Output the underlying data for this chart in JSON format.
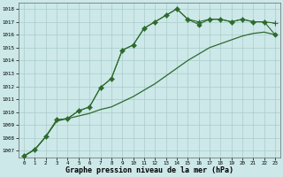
{
  "x": [
    0,
    1,
    2,
    3,
    4,
    5,
    6,
    7,
    8,
    9,
    10,
    11,
    12,
    13,
    14,
    15,
    16,
    17,
    18,
    19,
    20,
    21,
    22,
    23
  ],
  "line1": [
    1006.6,
    1007.1,
    1008.1,
    1009.4,
    1009.5,
    1010.1,
    1010.4,
    1011.9,
    1012.6,
    1014.8,
    1015.2,
    1016.5,
    1017.0,
    1017.5,
    1018.0,
    1017.2,
    1017.0,
    1017.2,
    1017.2,
    1017.0,
    1017.2,
    1017.0,
    1017.0,
    1016.9
  ],
  "line2": [
    1006.6,
    1007.1,
    1008.1,
    1009.4,
    1009.5,
    1010.1,
    1010.4,
    1011.9,
    1012.6,
    1014.8,
    1015.2,
    1016.5,
    1017.0,
    1017.5,
    1018.0,
    1017.2,
    1016.8,
    1017.2,
    1017.2,
    1017.0,
    1017.2,
    1017.0,
    1017.0,
    1016.0
  ],
  "line3": [
    1006.6,
    1007.1,
    1008.1,
    1009.3,
    1009.5,
    1009.7,
    1009.9,
    1010.2,
    1010.4,
    1010.8,
    1011.2,
    1011.7,
    1012.2,
    1012.8,
    1013.4,
    1014.0,
    1014.5,
    1015.0,
    1015.3,
    1015.6,
    1015.9,
    1016.1,
    1016.2,
    1016.0
  ],
  "line_color": "#2d6a2d",
  "bg_color": "#cce8e8",
  "grid_color": "#aacccc",
  "xlabel": "Graphe pression niveau de la mer (hPa)",
  "ylim": [
    1006.5,
    1018.5
  ],
  "yticks": [
    1007,
    1008,
    1009,
    1010,
    1011,
    1012,
    1013,
    1014,
    1015,
    1016,
    1017,
    1018
  ],
  "xticks": [
    0,
    1,
    2,
    3,
    4,
    5,
    6,
    7,
    8,
    9,
    10,
    11,
    12,
    13,
    14,
    15,
    16,
    17,
    18,
    19,
    20,
    21,
    22,
    23
  ],
  "marker_plus": "+",
  "marker_diamond": "D",
  "markersize_plus": 4,
  "markersize_diamond": 2.5
}
